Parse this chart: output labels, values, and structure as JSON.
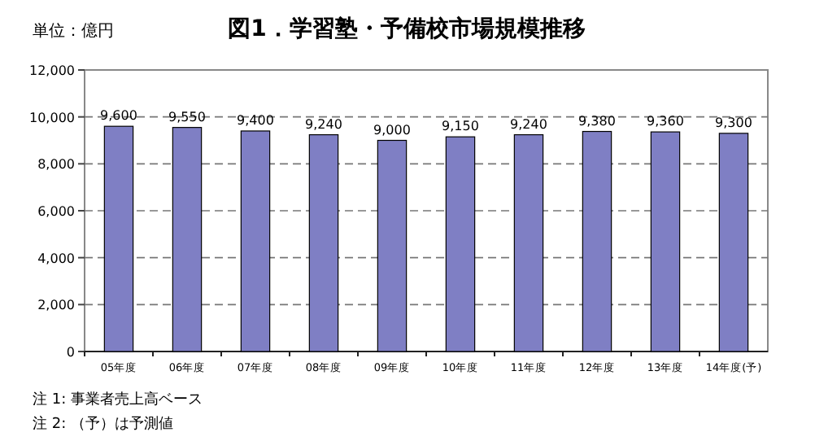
{
  "chart_data": {
    "type": "bar",
    "title": "図1．学習塾・予備校市場規模推移",
    "annotations": [
      "単位：億円",
      "注 1: 事業者売上高ベース",
      "注 2: （予）は予測値"
    ],
    "categories": [
      "05年度",
      "06年度",
      "07年度",
      "08年度",
      "09年度",
      "10年度",
      "11年度",
      "12年度",
      "13年度",
      "14年度(予)"
    ],
    "values": [
      9600,
      9550,
      9400,
      9240,
      9000,
      9150,
      9240,
      9380,
      9360,
      9300
    ],
    "value_labels": [
      "9,600",
      "9,550",
      "9,400",
      "9,240",
      "9,000",
      "9,150",
      "9,240",
      "9,380",
      "9,360",
      "9,300"
    ],
    "color": "#7f7fc4",
    "ylim": [
      0,
      12000
    ],
    "yticks": [
      0,
      {
        "value": 2000,
        "label": "2,000"
      },
      {
        "value": 4000,
        "label": "4,000"
      },
      {
        "value": 6000,
        "label": "6,000"
      },
      {
        "value": 8000,
        "label": "8,000"
      },
      {
        "value": 10000,
        "label": "10,000"
      },
      {
        "value": 12000,
        "label": "12,000"
      }
    ],
    "grid": "y"
  }
}
